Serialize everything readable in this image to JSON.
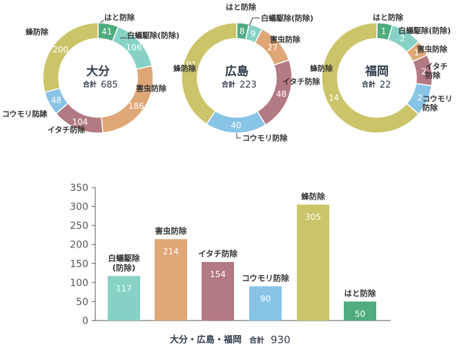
{
  "colors": {
    "hato": "#4fac7f",
    "hakugi": "#86d3c5",
    "gaichu": "#dfa676",
    "itachi": "#b37a83",
    "koumori": "#88c4e6",
    "hachi": "#ccc469",
    "axis": "#555555"
  },
  "chart_data": [
    {
      "type": "pie",
      "style": "donut",
      "center_title": "大分",
      "total_label": "合計",
      "total_value": "685",
      "slices": [
        {
          "label": "はと防除",
          "value": 41,
          "color": "hato"
        },
        {
          "label": "白蟻駆除(防除)",
          "value": 106,
          "color": "hakugi"
        },
        {
          "label": "害虫防除",
          "value": 186,
          "color": "gaichu"
        },
        {
          "label": "イタチ防除",
          "value": 104,
          "color": "itachi"
        },
        {
          "label": "コウモリ防除",
          "value": 48,
          "color": "koumori"
        },
        {
          "label": "蜂防除",
          "value": 200,
          "color": "hachi"
        }
      ]
    },
    {
      "type": "pie",
      "style": "donut",
      "center_title": "広島",
      "total_label": "合計",
      "total_value": "223",
      "slices": [
        {
          "label": "はと防除",
          "value": 8,
          "color": "hato"
        },
        {
          "label": "白蟻駆除(防除)",
          "value": 9,
          "color": "hakugi"
        },
        {
          "label": "害虫防除",
          "value": 27,
          "color": "gaichu"
        },
        {
          "label": "イタチ防除",
          "value": 48,
          "color": "itachi"
        },
        {
          "label": "コウモリ防除",
          "value": 40,
          "color": "koumori"
        },
        {
          "label": "蜂防除",
          "value": 91,
          "color": "hachi"
        }
      ]
    },
    {
      "type": "pie",
      "style": "donut",
      "center_title": "福岡",
      "total_label": "合計",
      "total_value": "22",
      "slices": [
        {
          "label": "はと防除",
          "value": 1,
          "color": "hato"
        },
        {
          "label": "白蟻駆除(防除)",
          "value": 2,
          "color": "hakugi"
        },
        {
          "label": "害虫防除",
          "value": 1,
          "color": "gaichu"
        },
        {
          "label": "イタチ\n防除",
          "value": 2,
          "color": "itachi"
        },
        {
          "label": "コウモリ\n防除",
          "value": 2,
          "color": "koumori"
        },
        {
          "label": "蜂防除",
          "value": 14,
          "color": "hachi"
        }
      ]
    },
    {
      "type": "bar",
      "title": "大分・広島・福岡",
      "total_label": "合計",
      "total_value": "930",
      "ylim": [
        0,
        350
      ],
      "yticks": [
        0,
        50,
        100,
        150,
        200,
        250,
        300,
        350
      ],
      "grid": false,
      "categories": [
        "白蟻駆除\n(防除)",
        "害虫防除",
        "イタチ防除",
        "コウモリ防除",
        "蜂防除",
        "はと防除"
      ],
      "values": [
        117,
        214,
        154,
        90,
        305,
        50
      ],
      "colors": [
        "hakugi",
        "gaichu",
        "itachi",
        "koumori",
        "hachi",
        "hato"
      ]
    }
  ]
}
